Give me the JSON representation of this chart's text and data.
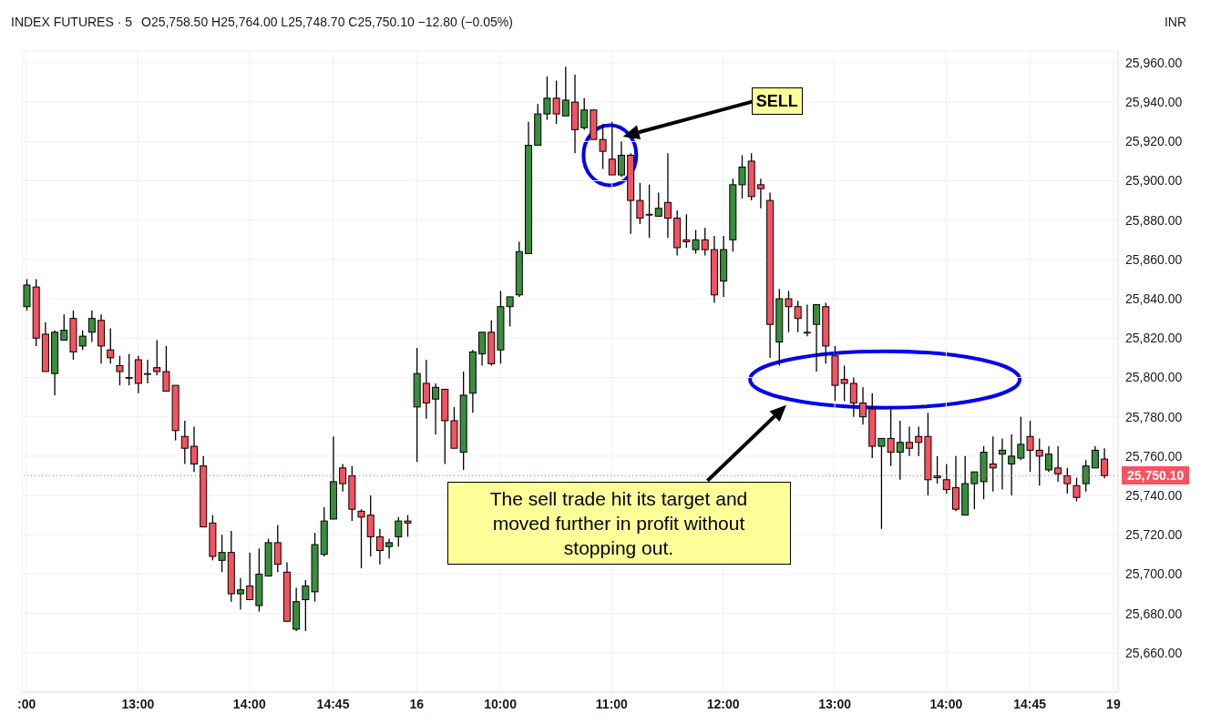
{
  "chart_data": {
    "type": "candlestick",
    "title": "INDEX FUTURES · 5",
    "subtitle": "O25,758.50  H25,764.00  L25,748.70  C25,750.10  −12.80 (−0.05%)",
    "annotations": [
      "INR",
      "SELL",
      "The sell trade hit its target and moved further in profit without stopping out."
    ],
    "categories": [
      ":00",
      null,
      null,
      null,
      null,
      null,
      null,
      null,
      null,
      null,
      null,
      null,
      "13:00",
      null,
      null,
      null,
      null,
      null,
      null,
      null,
      null,
      null,
      null,
      null,
      "14:00",
      null,
      null,
      null,
      null,
      null,
      null,
      null,
      null,
      "14:45",
      null,
      null,
      null,
      null,
      null,
      null,
      null,
      null,
      "16",
      null,
      null,
      null,
      null,
      null,
      null,
      null,
      null,
      "10:00",
      null,
      null,
      null,
      null,
      null,
      null,
      null,
      null,
      null,
      null,
      null,
      "11:00",
      null,
      null,
      null,
      null,
      null,
      null,
      null,
      null,
      null,
      null,
      null,
      "12:00",
      null,
      null,
      null,
      null,
      null,
      null,
      null,
      null,
      null,
      null,
      null,
      "13:00",
      null,
      null,
      null,
      null,
      null,
      null,
      null,
      null,
      null,
      null,
      null,
      "14:00",
      null,
      null,
      null,
      null,
      null,
      null,
      null,
      null,
      "14:45",
      null,
      null,
      null,
      null,
      null,
      null,
      null,
      null,
      "19"
    ],
    "ohlc": [
      [
        25836,
        25850,
        25834,
        25847
      ],
      [
        25846,
        25850,
        25816,
        25820
      ],
      [
        25822,
        25828,
        25803,
        25803
      ],
      [
        25802,
        25824,
        25791,
        25823
      ],
      [
        25819,
        25832,
        25819,
        25824
      ],
      [
        25830,
        25834,
        25809,
        25813
      ],
      [
        25816,
        25824,
        25814,
        25821
      ],
      [
        25823,
        25834,
        25818,
        25830
      ],
      [
        25829,
        25832,
        25807,
        25816
      ],
      [
        25814,
        25825,
        25807,
        25810
      ],
      [
        25806,
        25811,
        25796,
        25803
      ],
      [
        25800,
        25812,
        25796,
        25800
      ],
      [
        25809,
        25811,
        25792,
        25797
      ],
      [
        25802,
        25809,
        25797,
        25802
      ],
      [
        25805,
        25819,
        25801,
        25803
      ],
      [
        25803,
        25816,
        25793,
        25793
      ],
      [
        25796,
        25796,
        25768,
        25773
      ],
      [
        25770,
        25778,
        25756,
        25764
      ],
      [
        25765,
        25775,
        25752,
        25756
      ],
      [
        25755,
        25760,
        25724,
        25724
      ],
      [
        25726,
        25730,
        25707,
        25709
      ],
      [
        25707,
        25720,
        25701,
        25711
      ],
      [
        25711,
        25722,
        25686,
        25690
      ],
      [
        25690,
        25698,
        25682,
        25692
      ],
      [
        25694,
        25711,
        25687,
        25687
      ],
      [
        25684,
        25713,
        25681,
        25700
      ],
      [
        25699,
        25718,
        25699,
        25716
      ],
      [
        25716,
        25725,
        25701,
        25705
      ],
      [
        25701,
        25706,
        25676,
        25676
      ],
      [
        25672,
        25693,
        25671,
        25686
      ],
      [
        25687,
        25697,
        25671,
        25694
      ],
      [
        25691,
        25721,
        25686,
        25715
      ],
      [
        25710,
        25734,
        25709,
        25727
      ],
      [
        25728,
        25770,
        25728,
        25747
      ],
      [
        25754,
        25756,
        25742,
        25746
      ],
      [
        25750,
        25755,
        25727,
        25733
      ],
      [
        25732,
        25733,
        25703,
        25729
      ],
      [
        25730,
        25740,
        25709,
        25719
      ],
      [
        25719,
        25723,
        25705,
        25712
      ],
      [
        25714,
        25718,
        25708,
        25716
      ],
      [
        25719,
        25729,
        25714,
        25727
      ],
      [
        25727,
        25730,
        25719,
        25726
      ],
      [
        25785,
        25815,
        25757,
        25802
      ],
      [
        25797,
        25809,
        25779,
        25787
      ],
      [
        25789,
        25797,
        25771,
        25795
      ],
      [
        25794,
        25794,
        25756,
        25778
      ],
      [
        25778,
        25785,
        25764,
        25764
      ],
      [
        25762,
        25803,
        25753,
        25791
      ],
      [
        25792,
        25814,
        25782,
        25813
      ],
      [
        25812,
        25823,
        25806,
        25823
      ],
      [
        25823,
        25829,
        25806,
        25807
      ],
      [
        25814,
        25844,
        25807,
        25836
      ],
      [
        25836,
        25841,
        25826,
        25841
      ],
      [
        25842,
        25869,
        25841,
        25864
      ],
      [
        25863,
        25930,
        25863,
        25918
      ],
      [
        25918,
        25939,
        25918,
        25934
      ],
      [
        25934,
        25953,
        25931,
        25942
      ],
      [
        25942,
        25951,
        25929,
        25934
      ],
      [
        25933,
        25958,
        25933,
        25941
      ],
      [
        25940,
        25954,
        25914,
        25926
      ],
      [
        25927,
        25942,
        25926,
        25936
      ],
      [
        25936,
        25936,
        25921,
        25921
      ],
      [
        25921,
        25929,
        25906,
        25915
      ],
      [
        25911,
        25930,
        25903,
        25903
      ],
      [
        25903,
        25920,
        25902,
        25913
      ],
      [
        25913,
        25914,
        25873,
        25890
      ],
      [
        25890,
        25899,
        25878,
        25881
      ],
      [
        25883,
        25898,
        25871,
        25883
      ],
      [
        25882,
        25894,
        25882,
        25886
      ],
      [
        25889,
        25914,
        25871,
        25881
      ],
      [
        25881,
        25885,
        25862,
        25866
      ],
      [
        25870,
        25883,
        25866,
        25869
      ],
      [
        25865,
        25875,
        25863,
        25870
      ],
      [
        25870,
        25876,
        25862,
        25865
      ],
      [
        25865,
        25872,
        25838,
        25842
      ],
      [
        25849,
        25872,
        25841,
        25865
      ],
      [
        25870,
        25901,
        25864,
        25898
      ],
      [
        25898,
        25913,
        25891,
        25907
      ],
      [
        25910,
        25914,
        25890,
        25892
      ],
      [
        25898,
        25901,
        25886,
        25896
      ],
      [
        25890,
        25894,
        25810,
        25827
      ],
      [
        25818,
        25845,
        25806,
        25840
      ],
      [
        25840,
        25844,
        25823,
        25836
      ],
      [
        25836,
        25839,
        25823,
        25830
      ],
      [
        25823,
        25837,
        25821,
        25823
      ],
      [
        25827,
        25837,
        25803,
        25837
      ],
      [
        25836,
        25838,
        25807,
        25816
      ],
      [
        25811,
        25816,
        25788,
        25796
      ],
      [
        25799,
        25806,
        25788,
        25797
      ],
      [
        25797,
        25800,
        25780,
        25787
      ],
      [
        25787,
        25795,
        25776,
        25780
      ],
      [
        25784,
        25792,
        25759,
        25765
      ],
      [
        25765,
        25769,
        25723,
        25769
      ],
      [
        25769,
        25785,
        25755,
        25762
      ],
      [
        25762,
        25778,
        25748,
        25767
      ],
      [
        25767,
        25775,
        25760,
        25764
      ],
      [
        25770,
        25775,
        25760,
        25767
      ],
      [
        25770,
        25782,
        25740,
        25748
      ],
      [
        25749,
        25760,
        25746,
        25750
      ],
      [
        25748,
        25756,
        25741,
        25743
      ],
      [
        25744,
        25760,
        25732,
        25733
      ],
      [
        25730,
        25760,
        25730,
        25746
      ],
      [
        25746,
        25752,
        25733,
        25752
      ],
      [
        25747,
        25765,
        25738,
        25762
      ],
      [
        25756,
        25770,
        25742,
        25754
      ],
      [
        25761,
        25769,
        25743,
        25763
      ],
      [
        25756,
        25771,
        25740,
        25760
      ],
      [
        25759,
        25780,
        25758,
        25766
      ],
      [
        25770,
        25778,
        25752,
        25763
      ],
      [
        25763,
        25769,
        25745,
        25760
      ],
      [
        25753,
        25765,
        25752,
        25761
      ],
      [
        25754,
        25765,
        25747,
        25751
      ],
      [
        25750,
        25754,
        25741,
        25746
      ],
      [
        25745,
        25749,
        25737,
        25739
      ],
      [
        25746,
        25758,
        25742,
        25755
      ],
      [
        25754,
        25765,
        25754,
        25763
      ],
      [
        25758.5,
        25764,
        25748.7,
        25750.1
      ],
      null
    ],
    "colors": [
      "#388e3c",
      "#f7525f",
      "#f7525f",
      "#388e3c",
      "#388e3c",
      "#f7525f",
      "#388e3c",
      "#388e3c",
      "#f7525f",
      "#f7525f",
      "#f7525f",
      "#f7525f",
      "#f7525f",
      "#f7525f",
      "#f7525f",
      "#f7525f",
      "#f7525f",
      "#f7525f",
      "#f7525f",
      "#f7525f",
      "#f7525f",
      "#388e3c",
      "#f7525f",
      "#388e3c",
      "#f7525f",
      "#388e3c",
      "#388e3c",
      "#f7525f",
      "#f7525f",
      "#388e3c",
      "#388e3c",
      "#388e3c",
      "#388e3c",
      "#388e3c",
      "#f7525f",
      "#f7525f",
      "#f7525f",
      "#f7525f",
      "#f7525f",
      "#388e3c",
      "#388e3c",
      "#f7525f",
      "#388e3c",
      "#f7525f",
      "#388e3c",
      "#f7525f",
      "#f7525f",
      "#388e3c",
      "#388e3c",
      "#388e3c",
      "#f7525f",
      "#388e3c",
      "#388e3c",
      "#388e3c",
      "#388e3c",
      "#388e3c",
      "#388e3c",
      "#f7525f",
      "#388e3c",
      "#f7525f",
      "#388e3c",
      "#f7525f",
      "#f7525f",
      "#f7525f",
      "#388e3c",
      "#f7525f",
      "#f7525f",
      "#f7525f",
      "#388e3c",
      "#f7525f",
      "#f7525f",
      "#f7525f",
      "#388e3c",
      "#f7525f",
      "#f7525f",
      "#388e3c",
      "#388e3c",
      "#388e3c",
      "#f7525f",
      "#f7525f",
      "#f7525f",
      "#388e3c",
      "#f7525f",
      "#f7525f",
      "#f7525f",
      "#388e3c",
      "#f7525f",
      "#f7525f",
      "#f7525f",
      "#f7525f",
      "#f7525f",
      "#f7525f",
      "#388e3c",
      "#f7525f",
      "#388e3c",
      "#f7525f",
      "#f7525f",
      "#f7525f",
      "#388e3c",
      "#f7525f",
      "#f7525f",
      "#388e3c",
      "#388e3c",
      "#388e3c",
      "#f7525f",
      "#388e3c",
      "#388e3c",
      "#388e3c",
      "#f7525f",
      "#f7525f",
      "#388e3c",
      "#f7525f",
      "#f7525f",
      "#f7525f",
      "#388e3c",
      "#388e3c",
      "#f7525f",
      null
    ],
    "ylim": [
      25640,
      25966
    ],
    "yticks": [
      {
        "value": 25660,
        "label": "25,660.00"
      },
      {
        "value": 25680,
        "label": "25,680.00"
      },
      {
        "value": 25700,
        "label": "25,700.00"
      },
      {
        "value": 25720,
        "label": "25,720.00"
      },
      {
        "value": 25740,
        "label": "25,740.00"
      },
      {
        "value": 25760,
        "label": "25,760.00"
      },
      {
        "value": 25780,
        "label": "25,780.00"
      },
      {
        "value": 25800,
        "label": "25,800.00"
      },
      {
        "value": 25820,
        "label": "25,820.00"
      },
      {
        "value": 25840,
        "label": "25,840.00"
      },
      {
        "value": 25860,
        "label": "25,860.00"
      },
      {
        "value": 25880,
        "label": "25,880.00"
      },
      {
        "value": 25900,
        "label": "25,900.00"
      },
      {
        "value": 25920,
        "label": "25,920.00"
      },
      {
        "value": 25940,
        "label": "25,940.00"
      },
      {
        "value": 25960,
        "label": "25,960.00"
      }
    ],
    "ref_lines": [
      {
        "axis": "y",
        "value": 25750.1,
        "label": "25,750.10",
        "color": "#f7525f",
        "line_style": "dotted"
      }
    ],
    "grid": true
  }
}
